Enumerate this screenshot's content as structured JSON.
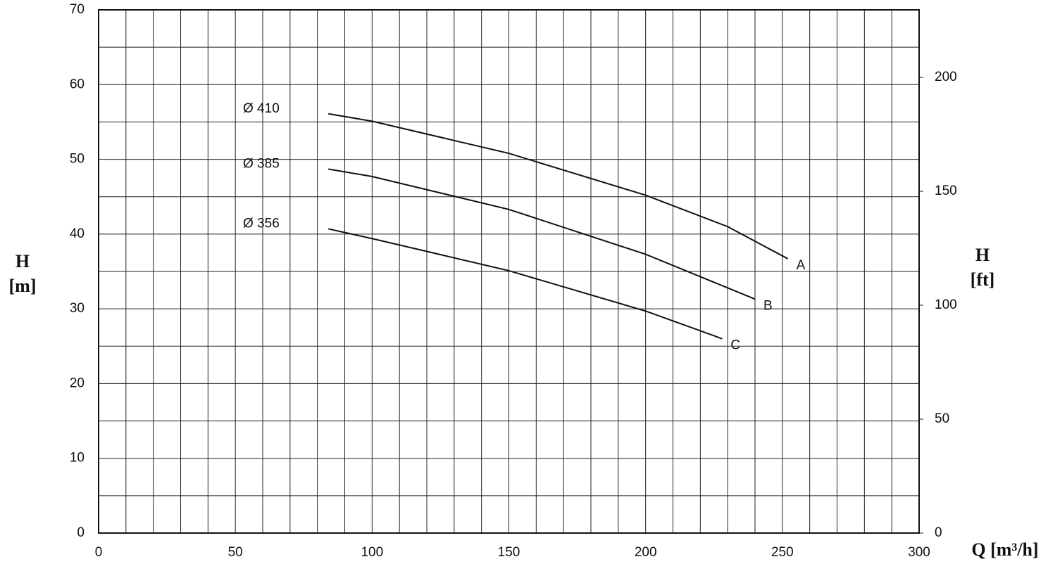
{
  "chart_data": {
    "type": "line",
    "xlabel": "Q [m³/h]",
    "ylabel": "H",
    "yunit": "[m]",
    "y2label": "H",
    "y2unit": "[ft]",
    "xlim": [
      0,
      300
    ],
    "xticks": [
      0,
      50,
      100,
      150,
      200,
      250,
      300
    ],
    "xgrid": [
      10,
      20,
      30,
      40,
      60,
      70,
      80,
      90,
      110,
      120,
      130,
      140,
      160,
      170,
      180,
      190,
      210,
      220,
      230,
      240,
      260,
      270,
      280,
      290
    ],
    "ylim": [
      0,
      70
    ],
    "yticks": [
      0,
      10,
      20,
      30,
      40,
      50,
      60,
      70
    ],
    "ygrid": [
      5,
      15,
      25,
      35,
      45,
      55,
      65
    ],
    "y2lim": [
      0,
      229.66
    ],
    "y2ticks": [
      0,
      50,
      100,
      150,
      200
    ],
    "series": [
      {
        "name": "A",
        "diameter": "Ø 410",
        "color": "#111111",
        "x": [
          84,
          100,
          150,
          200,
          230,
          252
        ],
        "values": [
          56.1,
          55.1,
          50.8,
          45.2,
          41.0,
          36.7
        ]
      },
      {
        "name": "B",
        "diameter": "Ø 385",
        "color": "#111111",
        "x": [
          84,
          100,
          150,
          200,
          240
        ],
        "values": [
          48.7,
          47.7,
          43.3,
          37.3,
          31.3
        ]
      },
      {
        "name": "C",
        "diameter": "Ø 356",
        "color": "#111111",
        "x": [
          84,
          100,
          150,
          200,
          228
        ],
        "values": [
          40.7,
          39.4,
          35.1,
          29.7,
          26.0
        ]
      }
    ]
  }
}
